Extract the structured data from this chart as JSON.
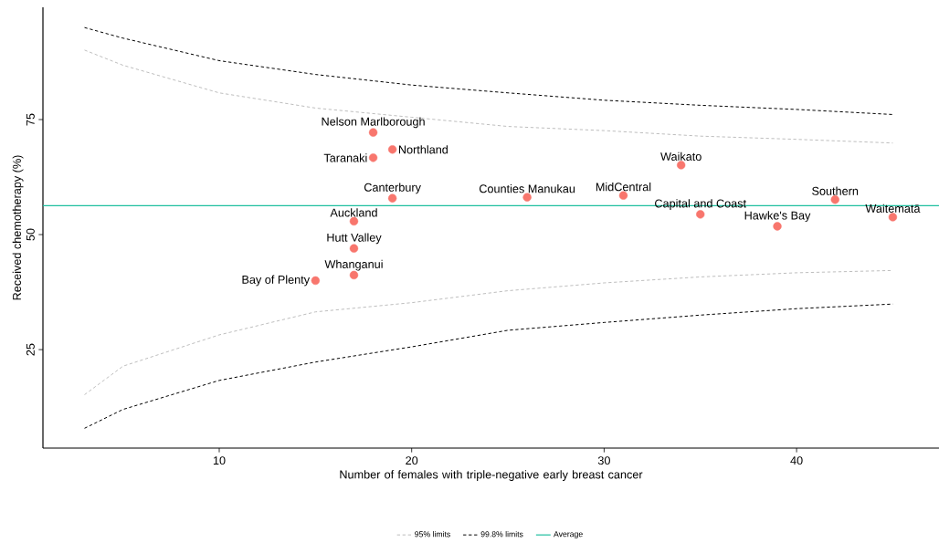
{
  "chart_data": {
    "type": "scatter",
    "xlabel": "Number of females with triple-negative early breast cancer",
    "ylabel": "Received chemotherapy (%)",
    "xlim": [
      0.84,
      47.4
    ],
    "ylim": [
      3.6,
      99.4
    ],
    "xticks": [
      10,
      20,
      30,
      40
    ],
    "yticks": [
      25,
      50,
      75
    ],
    "legend": "bottom",
    "series": [
      {
        "name": "95% limits",
        "type": "line",
        "color": "#bebebe",
        "line_style": "dashed",
        "marker": "none",
        "x": [
          3,
          5,
          10,
          15,
          20,
          25,
          30,
          35,
          40,
          45
        ],
        "values": [
          90.1,
          86.8,
          80.8,
          77.5,
          75.5,
          73.5,
          72.6,
          71.4,
          70.7,
          69.9
        ]
      },
      {
        "type": "line",
        "color": "#bebebe",
        "line_style": "dashed",
        "marker": "none",
        "x": [
          3,
          5,
          10,
          15,
          20,
          25,
          30,
          35,
          40,
          45
        ],
        "values": [
          15.2,
          21.4,
          28.2,
          33.2,
          35.2,
          37.8,
          39.5,
          40.8,
          41.7,
          42.2
        ]
      },
      {
        "name": "99.8% limits",
        "type": "line",
        "color": "#000000",
        "line_style": "dashed",
        "marker": "none",
        "x": [
          3,
          5,
          10,
          15,
          20,
          25,
          30,
          35,
          40,
          45
        ],
        "values": [
          95.0,
          92.7,
          87.8,
          84.8,
          82.5,
          80.8,
          79.2,
          78.1,
          77.2,
          76.1
        ]
      },
      {
        "type": "line",
        "color": "#000000",
        "line_style": "dashed",
        "marker": "none",
        "x": [
          3,
          5,
          10,
          15,
          20,
          25,
          30,
          35,
          40,
          45
        ],
        "values": [
          7.9,
          12.0,
          18.3,
          22.3,
          25.6,
          29.2,
          30.9,
          32.5,
          33.9,
          34.9
        ]
      },
      {
        "color": "#f8766d",
        "marker": "circle",
        "x": [
          18,
          19,
          18,
          19,
          17,
          17,
          17,
          15,
          26,
          31,
          34,
          35,
          39,
          42,
          45
        ],
        "values": [
          72.2,
          68.5,
          66.7,
          57.9,
          52.9,
          47.0,
          41.2,
          40.0,
          58.1,
          58.5,
          65.1,
          54.4,
          51.8,
          57.6,
          53.8
        ]
      }
    ],
    "ref_lines": [
      {
        "axis": "y",
        "value": 56.3,
        "label": "Average",
        "color": "#1fbf9f",
        "line_style": "solid"
      }
    ],
    "annotations": [
      {
        "text": "Nelson Marlborough",
        "x": 18,
        "y": 72.2
      },
      {
        "text": "Northland",
        "x": 19,
        "y": 68.5
      },
      {
        "text": "Taranaki",
        "x": 18,
        "y": 66.7
      },
      {
        "text": "Canterbury",
        "x": 19,
        "y": 57.9
      },
      {
        "text": "Auckland",
        "x": 17,
        "y": 52.9
      },
      {
        "text": "Hutt Valley",
        "x": 17,
        "y": 47.0
      },
      {
        "text": "Whanganui",
        "x": 17,
        "y": 41.2
      },
      {
        "text": "Bay of Plenty",
        "x": 15,
        "y": 40.0
      },
      {
        "text": "Counties Manukau",
        "x": 26,
        "y": 58.1
      },
      {
        "text": "MidCentral",
        "x": 31,
        "y": 58.5
      },
      {
        "text": "Waikato",
        "x": 34,
        "y": 65.1
      },
      {
        "text": "Capital and Coast",
        "x": 35,
        "y": 54.4
      },
      {
        "text": "Hawke's Bay",
        "x": 39,
        "y": 51.8
      },
      {
        "text": "Southern",
        "x": 42,
        "y": 57.6
      },
      {
        "text": "Waitematā",
        "x": 45,
        "y": 53.8
      }
    ]
  }
}
